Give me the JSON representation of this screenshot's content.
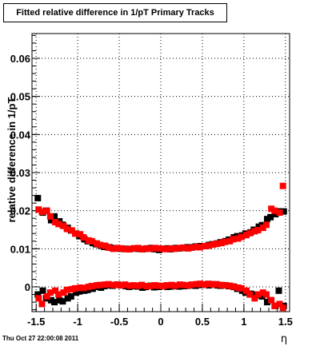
{
  "title": "Fitted relative difference in 1/pT  Primary Tracks",
  "footer": "Thu Oct 27 22:00:08 2011",
  "chart_data": {
    "type": "scatter",
    "title": "Fitted relative difference in 1/pT  Primary Tracks",
    "xlabel": "η",
    "ylabel": "relative difference in 1/pT",
    "xlim": [
      -1.55,
      1.55
    ],
    "ylim": [
      -0.0065,
      0.0665
    ],
    "x_ticks": [
      "-1.5",
      "-1",
      "-0.5",
      "0",
      "0.5",
      "1",
      "1.5"
    ],
    "y_ticks": [
      "0",
      "0.01",
      "0.02",
      "0.03",
      "0.04",
      "0.05",
      "0.06"
    ],
    "grid": true,
    "series": [
      {
        "color": "#000000",
        "role": "upper",
        "x": [
          -1.48,
          -1.42,
          -1.38,
          -1.32,
          -1.28,
          -1.22,
          -1.18,
          -1.12,
          -1.08,
          -1.02,
          -0.98,
          -0.92,
          -0.88,
          -0.82,
          -0.78,
          -0.72,
          -0.68,
          -0.62,
          -0.58,
          -0.52,
          -0.48,
          -0.42,
          -0.38,
          -0.32,
          -0.28,
          -0.22,
          -0.18,
          -0.12,
          -0.08,
          -0.02,
          0.02,
          0.08,
          0.12,
          0.18,
          0.22,
          0.28,
          0.32,
          0.38,
          0.42,
          0.48,
          0.52,
          0.58,
          0.62,
          0.68,
          0.72,
          0.78,
          0.82,
          0.88,
          0.92,
          0.98,
          1.02,
          1.08,
          1.12,
          1.18,
          1.22,
          1.28,
          1.32,
          1.38,
          1.42,
          1.48
        ],
        "y": [
          0.0233,
          0.0195,
          0.02,
          0.0175,
          0.0185,
          0.0172,
          0.0163,
          0.0155,
          0.0148,
          0.014,
          0.0133,
          0.0125,
          0.012,
          0.0115,
          0.0112,
          0.0108,
          0.0105,
          0.0104,
          0.0102,
          0.0101,
          0.01,
          0.01,
          0.0099,
          0.0101,
          0.01,
          0.0099,
          0.01,
          0.0102,
          0.0099,
          0.0097,
          0.01,
          0.0101,
          0.0099,
          0.0102,
          0.0101,
          0.0102,
          0.0104,
          0.0104,
          0.0106,
          0.0107,
          0.0107,
          0.011,
          0.0112,
          0.0114,
          0.0117,
          0.012,
          0.0124,
          0.013,
          0.0133,
          0.0135,
          0.014,
          0.0143,
          0.015,
          0.0158,
          0.0162,
          0.0178,
          0.0183,
          0.0191,
          0.0198,
          0.0198
        ]
      },
      {
        "color": "#ff0000",
        "role": "upper",
        "x": [
          -1.47,
          -1.43,
          -1.37,
          -1.33,
          -1.27,
          -1.23,
          -1.17,
          -1.13,
          -1.07,
          -1.03,
          -0.97,
          -0.93,
          -0.87,
          -0.83,
          -0.77,
          -0.73,
          -0.67,
          -0.63,
          -0.57,
          -0.53,
          -0.47,
          -0.43,
          -0.37,
          -0.33,
          -0.27,
          -0.23,
          -0.17,
          -0.13,
          -0.07,
          -0.03,
          0.03,
          0.07,
          0.13,
          0.17,
          0.23,
          0.27,
          0.33,
          0.37,
          0.43,
          0.47,
          0.53,
          0.57,
          0.63,
          0.67,
          0.73,
          0.77,
          0.83,
          0.87,
          0.93,
          0.97,
          1.03,
          1.07,
          1.13,
          1.17,
          1.23,
          1.27,
          1.33,
          1.37,
          1.43,
          1.47
        ],
        "y": [
          0.0203,
          0.0197,
          0.02,
          0.0185,
          0.017,
          0.0165,
          0.016,
          0.0152,
          0.0148,
          0.014,
          0.0138,
          0.013,
          0.0122,
          0.012,
          0.0114,
          0.011,
          0.0108,
          0.0103,
          0.01,
          0.0102,
          0.0101,
          0.0099,
          0.0099,
          0.0101,
          0.0102,
          0.0099,
          0.0101,
          0.01,
          0.0102,
          0.0101,
          0.01,
          0.0099,
          0.0101,
          0.01,
          0.0102,
          0.0103,
          0.0101,
          0.0103,
          0.0105,
          0.0104,
          0.0107,
          0.0108,
          0.0111,
          0.0113,
          0.0115,
          0.0118,
          0.012,
          0.0125,
          0.0127,
          0.0131,
          0.0136,
          0.0141,
          0.0146,
          0.0149,
          0.0155,
          0.0163,
          0.0205,
          0.02,
          0.0195,
          0.0265
        ]
      },
      {
        "color": "#000000",
        "role": "lower",
        "x": [
          -1.48,
          -1.42,
          -1.38,
          -1.32,
          -1.28,
          -1.22,
          -1.18,
          -1.12,
          -1.08,
          -1.02,
          -0.98,
          -0.92,
          -0.88,
          -0.82,
          -0.78,
          -0.72,
          -0.68,
          -0.62,
          -0.58,
          -0.52,
          -0.48,
          -0.42,
          -0.38,
          -0.32,
          -0.28,
          -0.22,
          -0.18,
          -0.12,
          -0.08,
          -0.02,
          0.02,
          0.08,
          0.12,
          0.18,
          0.22,
          0.28,
          0.32,
          0.38,
          0.42,
          0.48,
          0.52,
          0.58,
          0.62,
          0.68,
          0.72,
          0.78,
          0.82,
          0.88,
          0.92,
          0.98,
          1.02,
          1.08,
          1.12,
          1.18,
          1.22,
          1.28,
          1.32,
          1.38,
          1.42,
          1.48
        ],
        "y": [
          -0.002,
          -0.001,
          -0.003,
          -0.0035,
          -0.004,
          -0.0035,
          -0.0038,
          -0.003,
          -0.0025,
          -0.0015,
          -0.0012,
          -0.001,
          -0.0008,
          -0.0005,
          0.0,
          -0.0002,
          0.0002,
          0.0004,
          0.0003,
          0.0006,
          0.0004,
          0.0002,
          0.0,
          0.0002,
          0.0001,
          -0.0002,
          0.0,
          0.0003,
          -0.0001,
          0.0,
          0.0002,
          0.0,
          0.0001,
          0.0002,
          0.0001,
          0.0002,
          0.0003,
          0.0004,
          0.0003,
          0.0005,
          0.0006,
          0.0004,
          0.0007,
          0.0004,
          0.0003,
          0.0004,
          0.0002,
          0.0,
          -0.0005,
          -0.001,
          -0.0015,
          -0.0018,
          -0.002,
          -0.0022,
          -0.0025,
          -0.004,
          -0.0035,
          -0.005,
          -0.001,
          -0.005
        ]
      },
      {
        "color": "#ff0000",
        "role": "lower",
        "x": [
          -1.47,
          -1.43,
          -1.37,
          -1.33,
          -1.27,
          -1.23,
          -1.17,
          -1.13,
          -1.07,
          -1.03,
          -0.97,
          -0.93,
          -0.87,
          -0.83,
          -0.77,
          -0.73,
          -0.67,
          -0.63,
          -0.57,
          -0.53,
          -0.47,
          -0.43,
          -0.37,
          -0.33,
          -0.27,
          -0.23,
          -0.17,
          -0.13,
          -0.07,
          -0.03,
          0.03,
          0.07,
          0.13,
          0.17,
          0.23,
          0.27,
          0.33,
          0.37,
          0.43,
          0.47,
          0.53,
          0.57,
          0.63,
          0.67,
          0.73,
          0.77,
          0.83,
          0.87,
          0.93,
          0.97,
          1.03,
          1.07,
          1.13,
          1.17,
          1.23,
          1.27,
          1.33,
          1.37,
          1.43,
          1.47
        ],
        "y": [
          -0.003,
          -0.0045,
          -0.0025,
          -0.0015,
          -0.001,
          -0.002,
          -0.0015,
          -0.0008,
          -0.0006,
          -0.0004,
          -0.0002,
          -0.0003,
          0.0,
          0.0002,
          0.0004,
          0.0005,
          0.0006,
          0.0007,
          0.0005,
          0.0006,
          0.0004,
          0.0006,
          0.0003,
          0.0004,
          0.0003,
          0.0005,
          0.0002,
          0.0002,
          0.0004,
          0.0003,
          0.0002,
          0.0004,
          0.0005,
          0.0003,
          0.0006,
          0.0005,
          0.0004,
          0.0006,
          0.0007,
          0.0008,
          0.0006,
          0.0008,
          0.0006,
          0.0007,
          0.0005,
          0.0004,
          0.0003,
          0.0001,
          -0.0002,
          -0.0004,
          -0.001,
          -0.002,
          -0.003,
          -0.002,
          -0.0015,
          -0.002,
          -0.0035,
          -0.005,
          -0.0045,
          -0.0055
        ]
      }
    ]
  }
}
